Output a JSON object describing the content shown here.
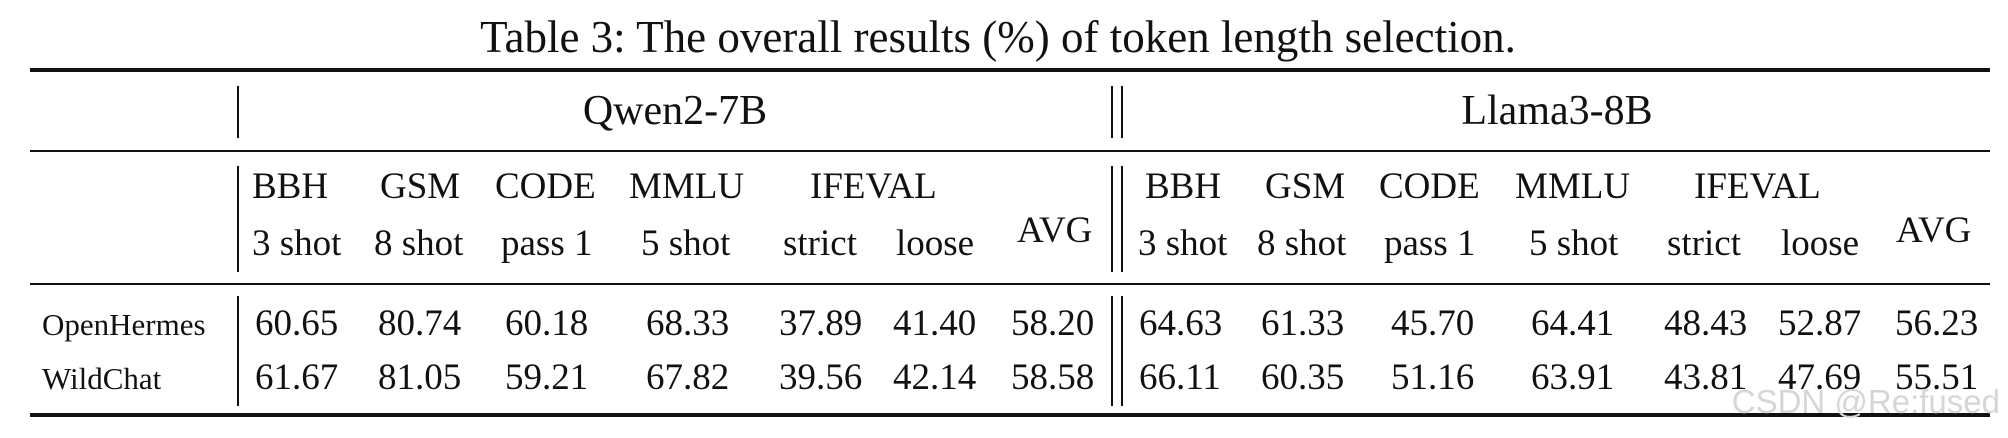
{
  "caption": "Table 3: The overall results (%) of token length selection.",
  "groups": [
    "Qwen2-7B",
    "Llama3-8B"
  ],
  "metrics": [
    {
      "name": "BBH",
      "setting": "3 shot"
    },
    {
      "name": "GSM",
      "setting": "8 shot"
    },
    {
      "name": "CODE",
      "setting": "pass 1"
    },
    {
      "name": "MMLU",
      "setting": "5 shot"
    },
    {
      "name": "IFEVAL",
      "setting": ""
    },
    {
      "name": "AVG",
      "setting": ""
    }
  ],
  "ifeval_sub": [
    "strict",
    "loose"
  ],
  "rows": [
    {
      "label": "OpenHermes",
      "qwen": [
        "60.65",
        "80.74",
        "60.18",
        "68.33",
        "37.89",
        "41.40",
        "58.20"
      ],
      "llama": [
        "64.63",
        "61.33",
        "45.70",
        "64.41",
        "48.43",
        "52.87",
        "56.23"
      ]
    },
    {
      "label": "WildChat",
      "qwen": [
        "61.67",
        "81.05",
        "59.21",
        "67.82",
        "39.56",
        "42.14",
        "58.58"
      ],
      "llama": [
        "66.11",
        "60.35",
        "51.16",
        "63.91",
        "43.81",
        "47.69",
        "55.51"
      ]
    }
  ],
  "watermark": "CSDN @Re:fused"
}
